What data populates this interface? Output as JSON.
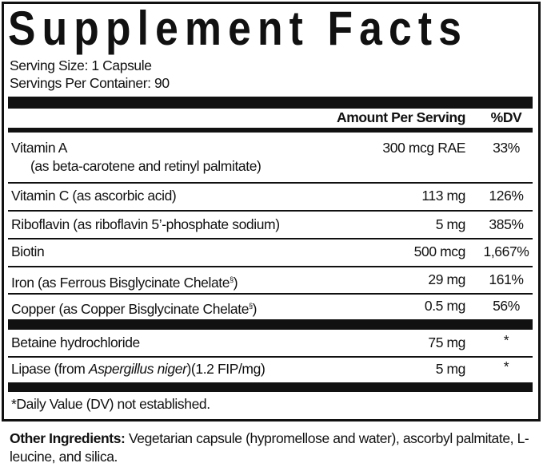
{
  "title": "Supplement Facts",
  "serving_size": "Serving Size: 1 Capsule",
  "servings_per_container": "Servings Per Container: 90",
  "header": {
    "amount": "Amount Per Serving",
    "dv": "%DV"
  },
  "rows": [
    {
      "name": "Vitamin A",
      "sub": "(as beta-carotene and retinyl palmitate)",
      "amount": "300 mcg RAE",
      "dv": "33%"
    },
    {
      "name": "Vitamin C (as ascorbic acid)",
      "amount": "113 mg",
      "dv": "126%"
    },
    {
      "name": "Riboflavin (as riboflavin 5’-phosphate sodium)",
      "amount": "5 mg",
      "dv": "385%"
    },
    {
      "name": "Biotin",
      "amount": "500 mcg",
      "dv": "1,667%"
    },
    {
      "name": "Iron (as Ferrous Bisglycinate Chelate",
      "sup": "§",
      "close": ")",
      "amount": "29 mg",
      "dv": "161%"
    },
    {
      "name": "Copper (as Copper Bisglycinate Chelate",
      "sup": "§",
      "close": ")",
      "amount": "0.5 mg",
      "dv": "56%"
    },
    {
      "name": "Betaine hydrochloride",
      "amount": "75 mg",
      "dv": "*"
    },
    {
      "name_pre": "Lipase (from ",
      "name_italic": "Aspergillus niger",
      "name_post": ")(1.2 FIP/mg)",
      "amount": "5 mg",
      "dv": "*"
    }
  ],
  "footnote": "*Daily Value (DV) not established.",
  "other": {
    "label": "Other Ingredients:",
    "text": " Vegetarian capsule (hypromellose and water), ascorbyl palmitate, L-leucine, and silica."
  }
}
